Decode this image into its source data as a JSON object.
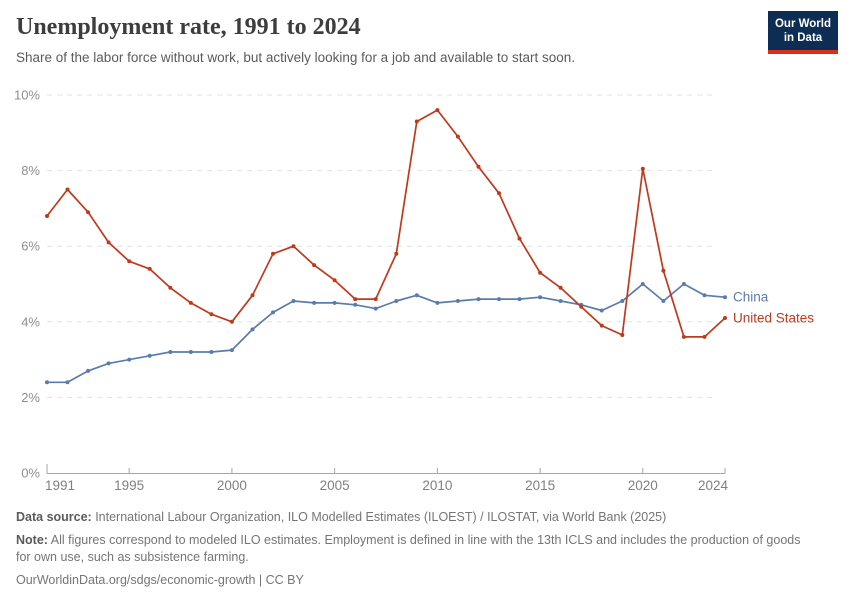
{
  "header": {
    "title": "Unemployment rate, 1991 to 2024",
    "subtitle": "Share of the labor force without work, but actively looking for a job and available to start soon.",
    "logo_line1": "Our World",
    "logo_line2": "in Data"
  },
  "brand": {
    "logo_navy": "#0d2d55",
    "logo_red": "#dc2e1c"
  },
  "chart_data": {
    "type": "line",
    "title": "Unemployment rate, 1991 to 2024",
    "x": [
      1991,
      1992,
      1993,
      1994,
      1995,
      1996,
      1997,
      1998,
      1999,
      2000,
      2001,
      2002,
      2003,
      2004,
      2005,
      2006,
      2007,
      2008,
      2009,
      2010,
      2011,
      2012,
      2013,
      2014,
      2015,
      2016,
      2017,
      2018,
      2019,
      2020,
      2021,
      2022,
      2023,
      2024
    ],
    "series": [
      {
        "name": "China",
        "color": "#5b7cab",
        "values": [
          2.4,
          2.4,
          2.7,
          2.9,
          3.0,
          3.1,
          3.2,
          3.2,
          3.2,
          3.25,
          3.8,
          4.25,
          4.55,
          4.5,
          4.5,
          4.45,
          4.35,
          4.55,
          4.7,
          4.5,
          4.55,
          4.6,
          4.6,
          4.6,
          4.65,
          4.55,
          4.45,
          4.3,
          4.55,
          5.0,
          4.55,
          5.0,
          4.7,
          4.65
        ]
      },
      {
        "name": "United States",
        "color": "#c0391d",
        "values": [
          6.8,
          7.5,
          6.9,
          6.1,
          5.6,
          5.4,
          4.9,
          4.5,
          4.2,
          4.0,
          4.7,
          5.8,
          6.0,
          5.5,
          5.1,
          4.6,
          4.6,
          5.8,
          9.3,
          9.6,
          8.9,
          8.1,
          7.4,
          6.2,
          5.3,
          4.9,
          4.4,
          3.9,
          3.65,
          8.05,
          5.35,
          3.6,
          3.6,
          4.1
        ]
      }
    ],
    "ylim": [
      0,
      10
    ],
    "yticks": [
      0,
      2,
      4,
      6,
      8,
      10
    ],
    "ytick_suffix": "%",
    "xticks": [
      1991,
      1995,
      2000,
      2005,
      2010,
      2015,
      2020,
      2024
    ],
    "grid": "horizontal-dashed",
    "legend_position": "line-end-labels"
  },
  "footer": {
    "source_label": "Data source:",
    "source_text": " International Labour Organization, ILO Modelled Estimates (ILOEST) / ILOSTAT, via World Bank (2025)",
    "note_label": "Note:",
    "note_text": " All figures correspond to modeled ILO estimates. Employment is defined in line with the 13th ICLS and includes the production of goods for own use, such as subsistence farming.",
    "citation_link": "OurWorldinData.org/sdgs/economic-growth",
    "citation_separator": " | ",
    "citation_license": "CC BY"
  }
}
